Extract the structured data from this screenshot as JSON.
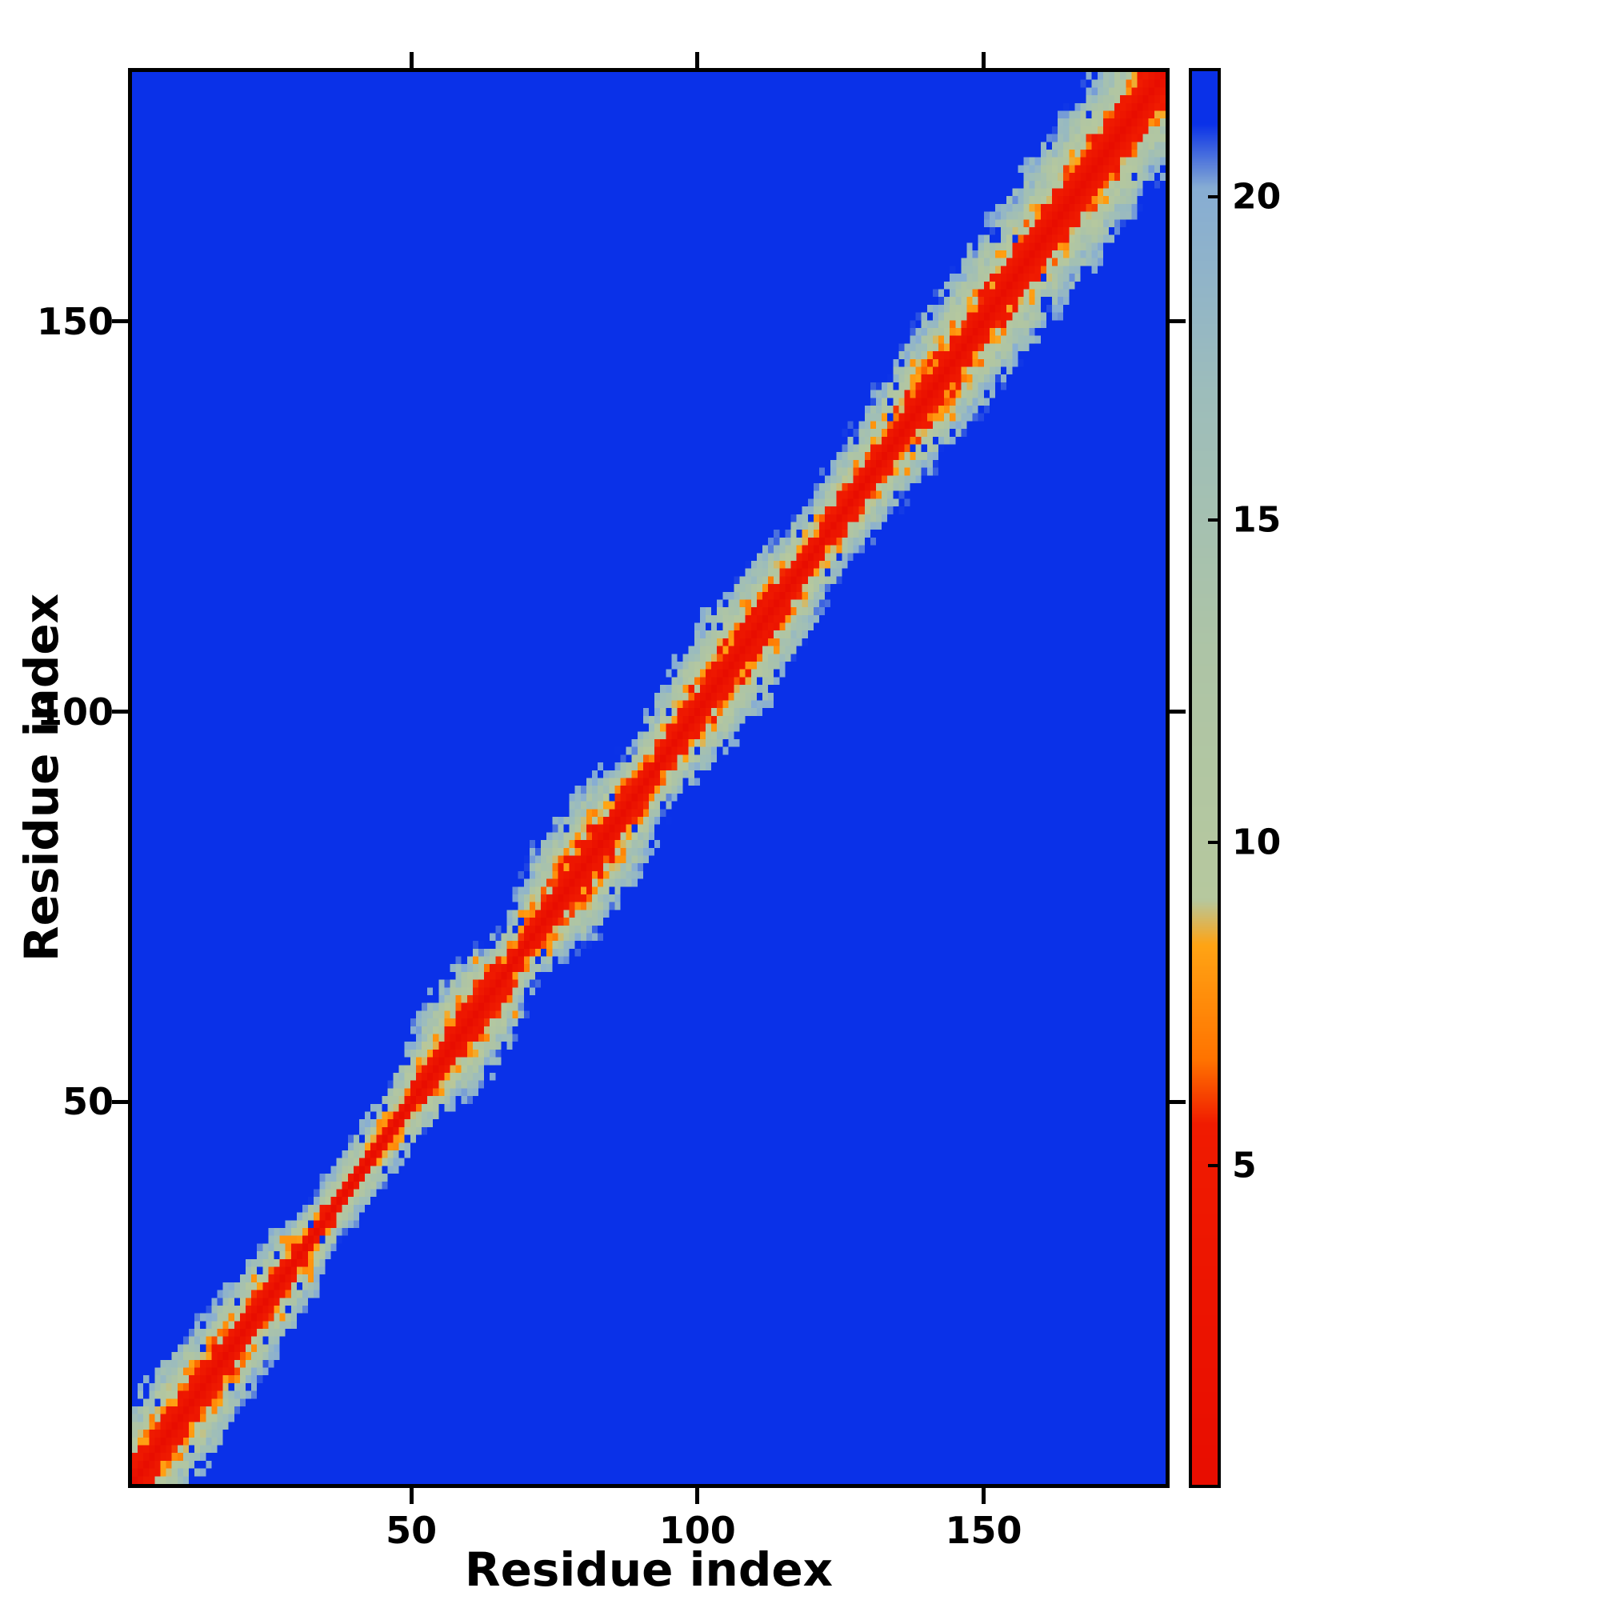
{
  "chart_data": {
    "type": "heatmap",
    "title": "",
    "xlabel": "Residue index",
    "ylabel": "Residue index",
    "x_ticks": [
      50,
      100,
      150
    ],
    "y_ticks": [
      50,
      100,
      150
    ],
    "n_residues": 182,
    "value_range": [
      0,
      22
    ],
    "grid": false,
    "legend": "colorbar-right",
    "colorbar": {
      "ticks": [
        5,
        10,
        15,
        20
      ],
      "orientation": "vertical"
    },
    "colormap_stops": [
      [
        0.0,
        "#e80d00"
      ],
      [
        5.6,
        "#f01b00"
      ],
      [
        6.6,
        "#ff7300"
      ],
      [
        8.4,
        "#ffa414"
      ],
      [
        9.1,
        "#b6c89e"
      ],
      [
        13.0,
        "#adc4a6"
      ],
      [
        17.0,
        "#9dbdbb"
      ],
      [
        20.2,
        "#87add3"
      ],
      [
        21.2,
        "#0a31e8"
      ],
      [
        22.0,
        "#0a31e8"
      ]
    ],
    "matrix_model": {
      "description": "Symmetric residue-residue distance map: value = |i-j| * 22 / W(t) with t=(i+j)/2, W = local contact band half-width interpolated from band_profile control points; values clamped to [0,22]; background (far off-diagonal) = 22.",
      "band_profile": [
        [
          1,
          10
        ],
        [
          10,
          11
        ],
        [
          20,
          9
        ],
        [
          28,
          8
        ],
        [
          35,
          5.5
        ],
        [
          44,
          6
        ],
        [
          50,
          7
        ],
        [
          58,
          11
        ],
        [
          64,
          10
        ],
        [
          69,
          6.5
        ],
        [
          78,
          12
        ],
        [
          85,
          11
        ],
        [
          92,
          7.5
        ],
        [
          100,
          10
        ],
        [
          108,
          12
        ],
        [
          115,
          10
        ],
        [
          122,
          7.5
        ],
        [
          133,
          9.5
        ],
        [
          140,
          11
        ],
        [
          155,
          12
        ],
        [
          170,
          13
        ],
        [
          182,
          12
        ]
      ],
      "noise_seed": 7.13,
      "noise_amplitude": 6.5,
      "speckle_high_probability": 0.07,
      "speckle_low_probability": 0.05
    }
  }
}
